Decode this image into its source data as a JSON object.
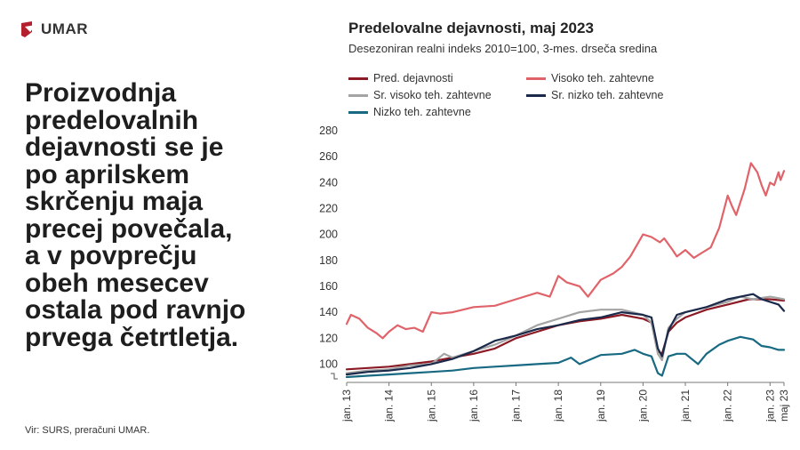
{
  "brand": {
    "name": "UMAR",
    "accent": "#b3202e"
  },
  "headline_lines": [
    "Proizvodnja",
    "predelovalnih",
    "dejavnosti se je",
    "po aprilskem",
    "skrčenju maja",
    "precej povečala,",
    "a v povprečju",
    "obeh mesecev",
    "ostala pod ravnjo",
    "prvega četrtletja."
  ],
  "source": "Vir: SURS, preračuni UMAR.",
  "chart_data": {
    "type": "line",
    "title": "Predelovalne dejavnosti, maj 2023",
    "subtitle": "Desezoniran realni indeks 2010=100, 3-mes. drseča sredina",
    "ylim": [
      90,
      280
    ],
    "yticks": [
      100,
      120,
      140,
      160,
      180,
      200,
      220,
      240,
      260,
      280
    ],
    "xticks": [
      "jan. 13",
      "jan. 14",
      "jan. 15",
      "jan. 16",
      "jan. 17",
      "jan. 18",
      "jan. 19",
      "jan. 20",
      "jan. 21",
      "jan. 22",
      "jan. 23",
      "maj 23"
    ],
    "x_range": [
      "jan. 13",
      "maj 23"
    ],
    "series": [
      {
        "name": "Pred. dejavnosti",
        "color": "#8b1a24",
        "points": [
          [
            2013.0,
            96
          ],
          [
            2013.5,
            97
          ],
          [
            2014.0,
            98
          ],
          [
            2014.5,
            100
          ],
          [
            2015.0,
            102
          ],
          [
            2015.5,
            105
          ],
          [
            2016.0,
            108
          ],
          [
            2016.5,
            112
          ],
          [
            2017.0,
            120
          ],
          [
            2017.5,
            125
          ],
          [
            2018.0,
            130
          ],
          [
            2018.5,
            133
          ],
          [
            2019.0,
            135
          ],
          [
            2019.5,
            138
          ],
          [
            2020.0,
            135
          ],
          [
            2020.2,
            132
          ],
          [
            2020.35,
            110
          ],
          [
            2020.45,
            108
          ],
          [
            2020.6,
            125
          ],
          [
            2020.8,
            132
          ],
          [
            2021.0,
            136
          ],
          [
            2021.5,
            142
          ],
          [
            2022.0,
            146
          ],
          [
            2022.5,
            150
          ],
          [
            2023.0,
            150
          ],
          [
            2023.33,
            149
          ]
        ]
      },
      {
        "name": "Visoko teh. zahtevne",
        "color": "#e0636a",
        "points": [
          [
            2013.0,
            131
          ],
          [
            2013.1,
            138
          ],
          [
            2013.3,
            135
          ],
          [
            2013.5,
            128
          ],
          [
            2013.7,
            124
          ],
          [
            2013.85,
            120
          ],
          [
            2014.0,
            125
          ],
          [
            2014.2,
            130
          ],
          [
            2014.4,
            127
          ],
          [
            2014.6,
            128
          ],
          [
            2014.8,
            125
          ],
          [
            2015.0,
            140
          ],
          [
            2015.2,
            139
          ],
          [
            2015.5,
            140
          ],
          [
            2016.0,
            144
          ],
          [
            2016.5,
            145
          ],
          [
            2017.0,
            150
          ],
          [
            2017.5,
            155
          ],
          [
            2017.8,
            152
          ],
          [
            2018.0,
            168
          ],
          [
            2018.2,
            163
          ],
          [
            2018.5,
            160
          ],
          [
            2018.7,
            152
          ],
          [
            2019.0,
            165
          ],
          [
            2019.3,
            170
          ],
          [
            2019.5,
            175
          ],
          [
            2019.7,
            183
          ],
          [
            2020.0,
            200
          ],
          [
            2020.2,
            198
          ],
          [
            2020.4,
            194
          ],
          [
            2020.5,
            197
          ],
          [
            2020.7,
            188
          ],
          [
            2020.8,
            183
          ],
          [
            2021.0,
            188
          ],
          [
            2021.2,
            182
          ],
          [
            2021.4,
            186
          ],
          [
            2021.6,
            190
          ],
          [
            2021.8,
            205
          ],
          [
            2022.0,
            230
          ],
          [
            2022.1,
            222
          ],
          [
            2022.2,
            215
          ],
          [
            2022.4,
            235
          ],
          [
            2022.55,
            255
          ],
          [
            2022.7,
            248
          ],
          [
            2022.8,
            238
          ],
          [
            2022.9,
            230
          ],
          [
            2023.0,
            240
          ],
          [
            2023.1,
            238
          ],
          [
            2023.2,
            248
          ],
          [
            2023.25,
            242
          ],
          [
            2023.33,
            249
          ]
        ]
      },
      {
        "name": "Sr. visoko teh. zahtevne",
        "color": "#a4a4a4",
        "points": [
          [
            2013.0,
            93
          ],
          [
            2013.5,
            95
          ],
          [
            2014.0,
            96
          ],
          [
            2014.5,
            99
          ],
          [
            2015.0,
            100
          ],
          [
            2015.3,
            108
          ],
          [
            2015.5,
            105
          ],
          [
            2016.0,
            110
          ],
          [
            2016.5,
            115
          ],
          [
            2017.0,
            122
          ],
          [
            2017.5,
            130
          ],
          [
            2018.0,
            135
          ],
          [
            2018.5,
            140
          ],
          [
            2019.0,
            142
          ],
          [
            2019.5,
            142
          ],
          [
            2020.0,
            138
          ],
          [
            2020.2,
            132
          ],
          [
            2020.35,
            108
          ],
          [
            2020.45,
            103
          ],
          [
            2020.6,
            128
          ],
          [
            2020.8,
            135
          ],
          [
            2021.0,
            140
          ],
          [
            2021.5,
            144
          ],
          [
            2022.0,
            148
          ],
          [
            2022.3,
            152
          ],
          [
            2022.6,
            150
          ],
          [
            2023.0,
            152
          ],
          [
            2023.33,
            150
          ]
        ]
      },
      {
        "name": "Sr. nizko teh. zahtevne",
        "color": "#1b2a4a",
        "points": [
          [
            2013.0,
            92
          ],
          [
            2013.5,
            94
          ],
          [
            2014.0,
            95
          ],
          [
            2014.5,
            97
          ],
          [
            2015.0,
            100
          ],
          [
            2015.5,
            104
          ],
          [
            2016.0,
            110
          ],
          [
            2016.5,
            118
          ],
          [
            2017.0,
            122
          ],
          [
            2017.5,
            127
          ],
          [
            2018.0,
            130
          ],
          [
            2018.5,
            134
          ],
          [
            2019.0,
            136
          ],
          [
            2019.5,
            140
          ],
          [
            2020.0,
            138
          ],
          [
            2020.2,
            136
          ],
          [
            2020.35,
            112
          ],
          [
            2020.45,
            106
          ],
          [
            2020.6,
            126
          ],
          [
            2020.8,
            138
          ],
          [
            2021.0,
            140
          ],
          [
            2021.5,
            144
          ],
          [
            2022.0,
            150
          ],
          [
            2022.3,
            152
          ],
          [
            2022.6,
            154
          ],
          [
            2022.8,
            150
          ],
          [
            2023.0,
            148
          ],
          [
            2023.2,
            146
          ],
          [
            2023.33,
            141
          ]
        ]
      },
      {
        "name": "Nizko teh. zahtevne",
        "color": "#186982",
        "points": [
          [
            2013.0,
            90
          ],
          [
            2013.5,
            91
          ],
          [
            2014.0,
            92
          ],
          [
            2014.5,
            93
          ],
          [
            2015.0,
            94
          ],
          [
            2015.5,
            95
          ],
          [
            2016.0,
            97
          ],
          [
            2016.5,
            98
          ],
          [
            2017.0,
            99
          ],
          [
            2017.5,
            100
          ],
          [
            2018.0,
            101
          ],
          [
            2018.3,
            105
          ],
          [
            2018.5,
            100
          ],
          [
            2019.0,
            107
          ],
          [
            2019.5,
            108
          ],
          [
            2019.8,
            111
          ],
          [
            2020.0,
            108
          ],
          [
            2020.2,
            106
          ],
          [
            2020.35,
            93
          ],
          [
            2020.45,
            91
          ],
          [
            2020.6,
            106
          ],
          [
            2020.8,
            108
          ],
          [
            2021.0,
            108
          ],
          [
            2021.3,
            100
          ],
          [
            2021.5,
            108
          ],
          [
            2021.8,
            115
          ],
          [
            2022.0,
            118
          ],
          [
            2022.3,
            121
          ],
          [
            2022.6,
            119
          ],
          [
            2022.8,
            114
          ],
          [
            2023.0,
            113
          ],
          [
            2023.2,
            111
          ],
          [
            2023.33,
            111
          ]
        ]
      }
    ]
  }
}
